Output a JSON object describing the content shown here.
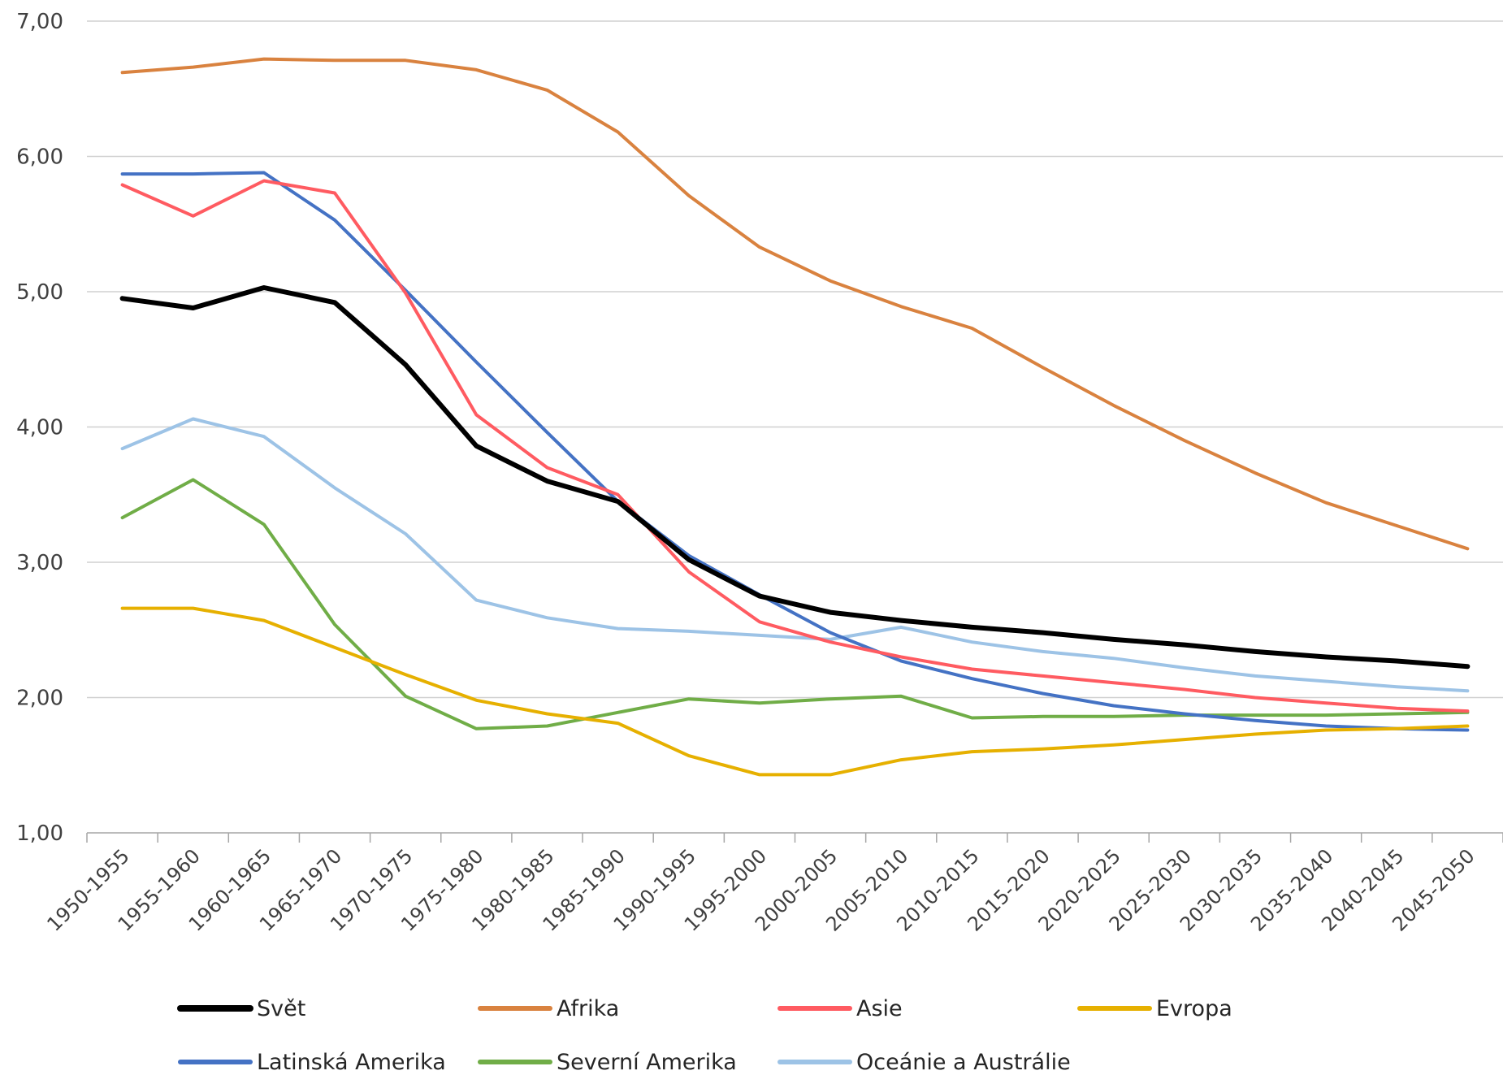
{
  "chart_data": {
    "type": "line",
    "title": "",
    "xlabel": "",
    "ylabel": "",
    "ylim": [
      1,
      7
    ],
    "yticks": [
      "1,00",
      "2,00",
      "3,00",
      "4,00",
      "5,00",
      "6,00",
      "7,00"
    ],
    "grid": true,
    "legend": "bottom",
    "categories": [
      "1950-1955",
      "1955-1960",
      "1960-1965",
      "1965-1970",
      "1970-1975",
      "1975-1980",
      "1980-1985",
      "1985-1990",
      "1990-1995",
      "1995-2000",
      "2000-2005",
      "2005-2010",
      "2010-2015",
      "2015-2020",
      "2020-2025",
      "2025-2030",
      "2030-2035",
      "2035-2040",
      "2040-2045",
      "2045-2050"
    ],
    "series": [
      {
        "name": "Svět",
        "color": "#000000",
        "width": 6,
        "values": [
          4.95,
          4.88,
          5.03,
          4.92,
          4.46,
          3.86,
          3.6,
          3.45,
          3.02,
          2.75,
          2.63,
          2.57,
          2.52,
          2.48,
          2.43,
          2.39,
          2.34,
          2.3,
          2.27,
          2.23
        ]
      },
      {
        "name": "Afrika",
        "color": "#D9823F",
        "width": 4,
        "values": [
          6.62,
          6.66,
          6.72,
          6.71,
          6.71,
          6.64,
          6.49,
          6.18,
          5.71,
          5.33,
          5.08,
          4.89,
          4.73,
          4.44,
          4.16,
          3.9,
          3.66,
          3.44,
          3.27,
          3.1
        ]
      },
      {
        "name": "Asie",
        "color": "#FF5B61",
        "width": 4,
        "values": [
          5.79,
          5.56,
          5.82,
          5.73,
          4.99,
          4.09,
          3.7,
          3.5,
          2.93,
          2.56,
          2.41,
          2.3,
          2.21,
          2.16,
          2.11,
          2.06,
          2.0,
          1.96,
          1.92,
          1.9
        ]
      },
      {
        "name": "Evropa",
        "color": "#E6B000",
        "width": 4,
        "values": [
          2.66,
          2.66,
          2.57,
          2.37,
          2.17,
          1.98,
          1.88,
          1.81,
          1.57,
          1.43,
          1.43,
          1.54,
          1.6,
          1.62,
          1.65,
          1.69,
          1.73,
          1.76,
          1.77,
          1.79
        ]
      },
      {
        "name": "Latinská Amerika",
        "color": "#4472C4",
        "width": 4,
        "values": [
          5.87,
          5.87,
          5.88,
          5.53,
          5.01,
          4.48,
          3.96,
          3.45,
          3.05,
          2.76,
          2.48,
          2.27,
          2.14,
          2.03,
          1.94,
          1.88,
          1.83,
          1.79,
          1.77,
          1.76
        ]
      },
      {
        "name": "Severní Amerika",
        "color": "#70AD47",
        "width": 4,
        "values": [
          3.33,
          3.61,
          3.28,
          2.54,
          2.01,
          1.77,
          1.79,
          1.89,
          1.99,
          1.96,
          1.99,
          2.01,
          1.85,
          1.86,
          1.86,
          1.87,
          1.87,
          1.87,
          1.88,
          1.89
        ]
      },
      {
        "name": "Oceánie a Austrálie",
        "color": "#9DC3E6",
        "width": 4,
        "values": [
          3.84,
          4.06,
          3.93,
          3.55,
          3.21,
          2.72,
          2.59,
          2.51,
          2.49,
          2.46,
          2.43,
          2.52,
          2.41,
          2.34,
          2.29,
          2.22,
          2.16,
          2.12,
          2.08,
          2.05
        ]
      }
    ]
  }
}
